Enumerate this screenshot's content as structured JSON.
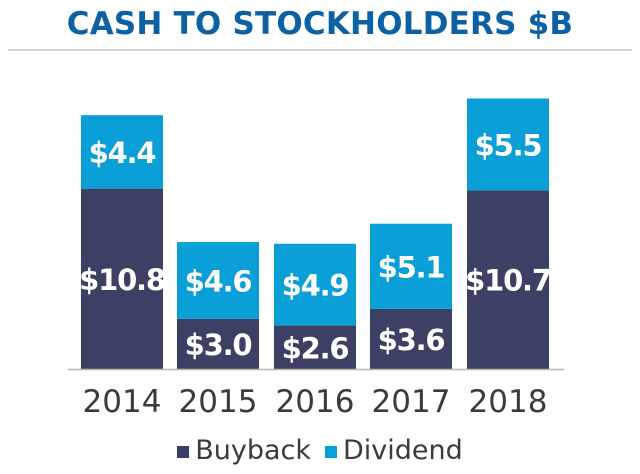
{
  "chart_data": {
    "type": "bar",
    "stacked": true,
    "title": "CASH TO STOCKHOLDERS $B",
    "categories": [
      "2014",
      "2015",
      "2016",
      "2017",
      "2018"
    ],
    "series": [
      {
        "name": "Buyback",
        "color": "#3b4064",
        "values": [
          10.8,
          3.0,
          2.6,
          3.6,
          10.7
        ],
        "labels": [
          "$10.8",
          "$3.0",
          "$2.6",
          "$3.6",
          "$10.7"
        ]
      },
      {
        "name": "Dividend",
        "color": "#0a9fd6",
        "values": [
          4.4,
          4.6,
          4.9,
          5.1,
          5.5
        ],
        "labels": [
          "$4.4",
          "$4.6",
          "$4.9",
          "$5.1",
          "$5.5"
        ]
      }
    ],
    "xlabel": "",
    "ylabel": "",
    "ylim": [
      0,
      16.2
    ],
    "grid": false,
    "legend_position": "bottom-center"
  }
}
